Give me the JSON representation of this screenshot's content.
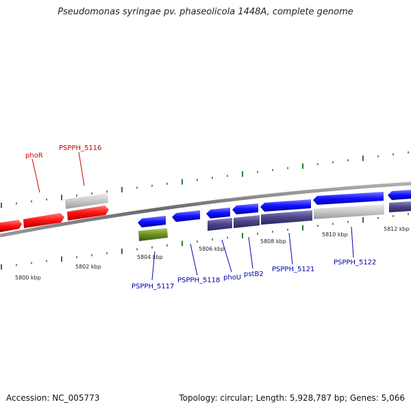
{
  "title": "Pseudomonas syringae pv. phaseolicola 1448A, complete genome",
  "footer": {
    "accession": "Accession: NC_005773",
    "stats": "Topology: circular; Length: 5,928,787 bp; Genes: 5,066"
  },
  "scale_labels": [
    "5800 kbp",
    "5802 kbp",
    "5804 kbp",
    "5806 kbp",
    "5808 kbp",
    "5810 kbp",
    "5812 kbp"
  ],
  "gene_labels_forward": [
    "phoR",
    "PSPPH_5116"
  ],
  "gene_labels_reverse": [
    "PSPPH_5117",
    "PSPPH_5118",
    "phoU",
    "pstB2",
    "PSPPH_5121",
    "PSPPH_5122"
  ],
  "colors": {
    "forward_gene": "#ff1a1a",
    "reverse_gene": "#1a1aff",
    "reverse_cds": "#4a4488",
    "rna": "#6b8e23",
    "other": "#c8c8c8",
    "backbone": "#808080",
    "ticks": "#2a7a2a",
    "forward_label": "#cc0000",
    "reverse_label": "#0000aa"
  }
}
